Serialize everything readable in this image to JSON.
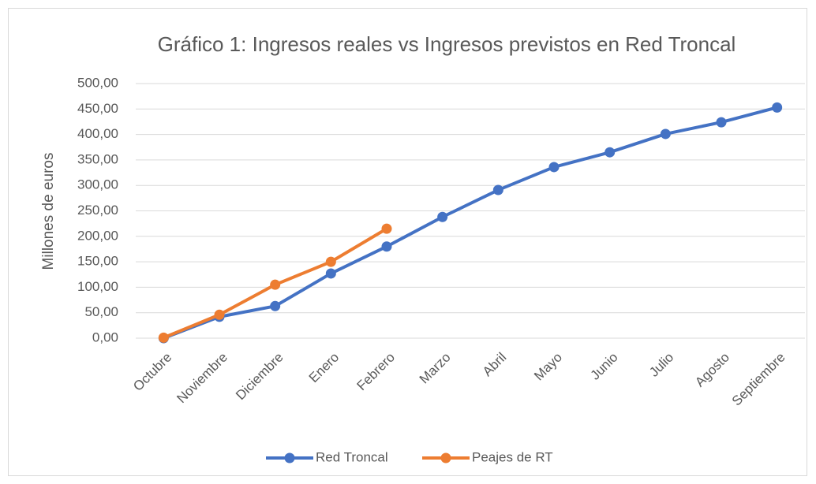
{
  "chart_data": {
    "type": "line",
    "title": "Gráfico 1: Ingresos reales vs Ingresos previstos en Red Troncal",
    "y_label": "Millones de euros",
    "categories": [
      "Octubre",
      "Noviembre",
      "Diciembre",
      "Enero",
      "Febrero",
      "Marzo",
      "Abril",
      "Mayo",
      "Junio",
      "Julio",
      "Agosto",
      "Septiembre"
    ],
    "series": [
      {
        "name": "Red Troncal",
        "color": "#4472c4",
        "values": [
          0,
          42,
          63,
          127,
          180,
          238,
          291,
          336,
          365,
          401,
          424,
          453
        ]
      },
      {
        "name": "Peajes de RT",
        "color": "#ed7d31",
        "values": [
          1,
          46,
          105,
          150,
          215,
          null,
          null,
          null,
          null,
          null,
          null,
          null
        ]
      }
    ],
    "ylim": [
      0,
      500
    ],
    "yticks": [
      {
        "value": 0,
        "label": "0,00"
      },
      {
        "value": 50,
        "label": "50,00"
      },
      {
        "value": 100,
        "label": "100,00"
      },
      {
        "value": 150,
        "label": "150,00"
      },
      {
        "value": 200,
        "label": "200,00"
      },
      {
        "value": 250,
        "label": "250,00"
      },
      {
        "value": 300,
        "label": "300,00"
      },
      {
        "value": 350,
        "label": "350,00"
      },
      {
        "value": 400,
        "label": "400,00"
      },
      {
        "value": 450,
        "label": "450,00"
      },
      {
        "value": 500,
        "label": "500,00"
      }
    ],
    "grid": true,
    "legend": "bottom"
  }
}
